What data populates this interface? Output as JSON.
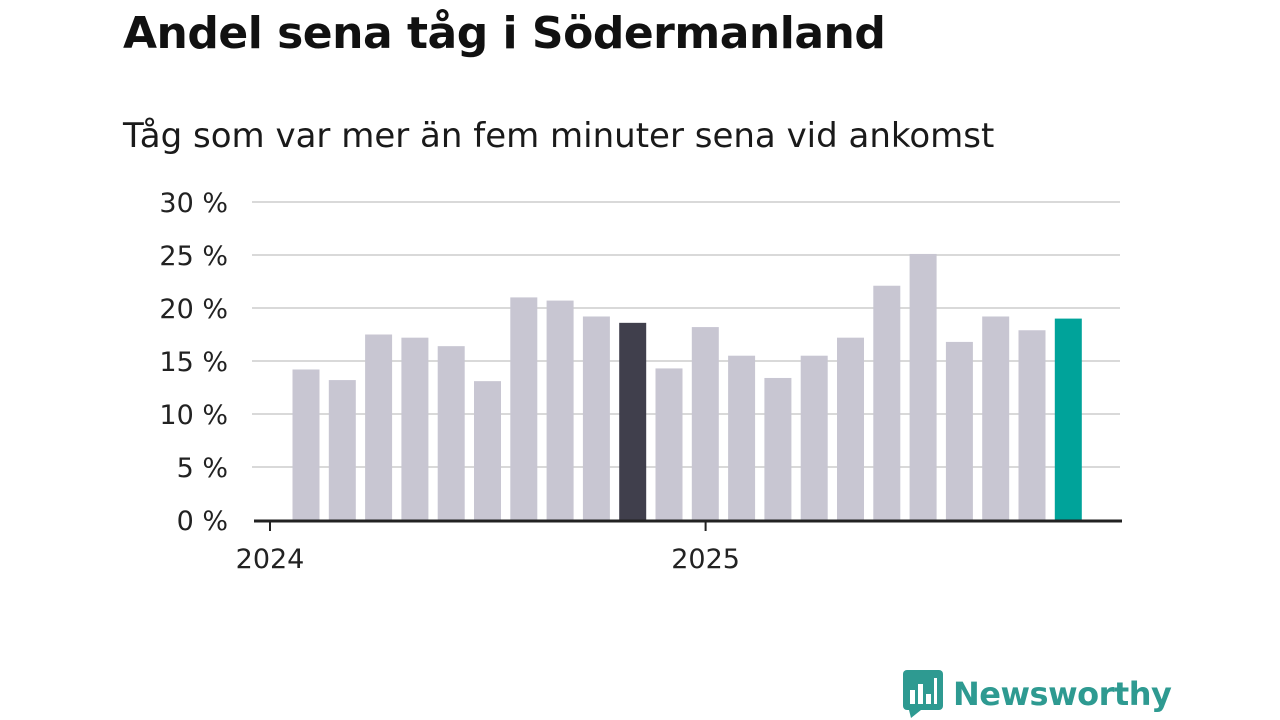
{
  "title": "Andel sena tåg i Södermanland",
  "subtitle": "Tåg som var mer än fem minuter sena vid ankomst",
  "brand": {
    "name": "Newsworthy",
    "icon": "newsworthy-bar-chart-icon",
    "color": "#2e9a91"
  },
  "colors": {
    "bar_default": "#c8c6d2",
    "bar_highlight_dark": "#403f4c",
    "bar_highlight_accent": "#00a39a",
    "grid": "#d9d9d9",
    "axis": "#222222"
  },
  "chart_data": {
    "type": "bar",
    "title": "Andel sena tåg i Södermanland",
    "subtitle": "Tåg som var mer än fem minuter sena vid ankomst",
    "xlabel": "",
    "ylabel": "",
    "ylim": [
      0,
      30
    ],
    "yticks": [
      0,
      5,
      10,
      15,
      20,
      25,
      30
    ],
    "ytick_labels": [
      "0 %",
      "5 %",
      "10 %",
      "15 %",
      "20 %",
      "25 %",
      "30 %"
    ],
    "x_tick_labels": [
      {
        "label": "2024",
        "at_index": 0
      },
      {
        "label": "2025",
        "at_index": 12
      }
    ],
    "grid": true,
    "values": [
      14.2,
      13.2,
      17.5,
      17.2,
      16.4,
      13.1,
      21.0,
      20.7,
      19.2,
      18.6,
      14.3,
      18.2,
      15.5,
      13.4,
      15.5,
      17.2,
      22.1,
      25.1,
      16.8,
      19.2,
      17.9,
      19.0
    ],
    "highlight": [
      {
        "index": 9,
        "role": "dark"
      },
      {
        "index": 21,
        "role": "accent"
      }
    ]
  }
}
